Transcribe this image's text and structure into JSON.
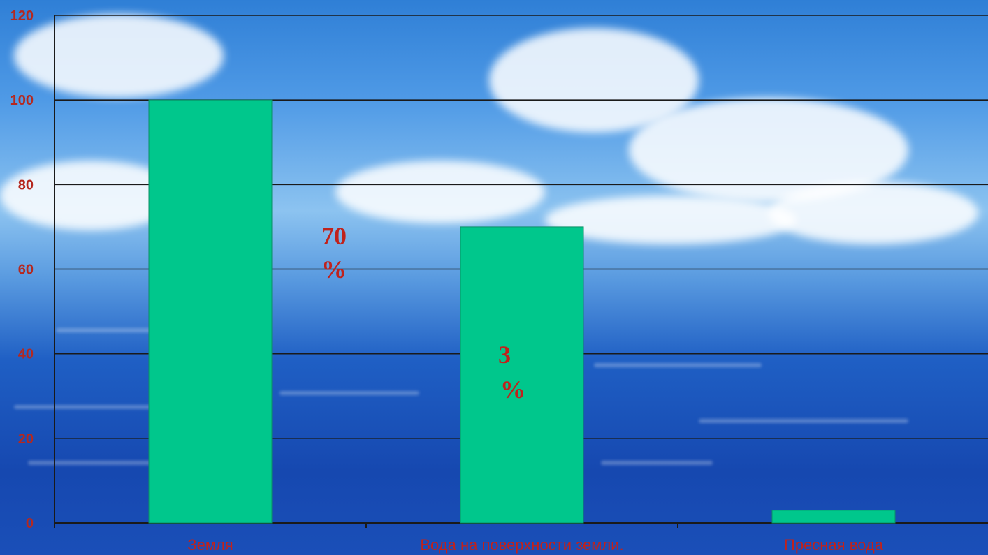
{
  "chart_data": {
    "type": "bar",
    "categories": [
      "Земля",
      "Вода на поверхности земли.",
      "Пресная вода"
    ],
    "values": [
      100,
      70,
      3
    ],
    "ylim": [
      0,
      120
    ],
    "yticks": [
      "0",
      "20",
      "40",
      "60",
      "80",
      "100",
      "120"
    ],
    "grid": true,
    "bar_color": "#00c78c",
    "label_color": "#c0221c",
    "annotations": [
      {
        "line1": "70",
        "line2": "%"
      },
      {
        "line1": "3",
        "line2": "%"
      }
    ]
  }
}
